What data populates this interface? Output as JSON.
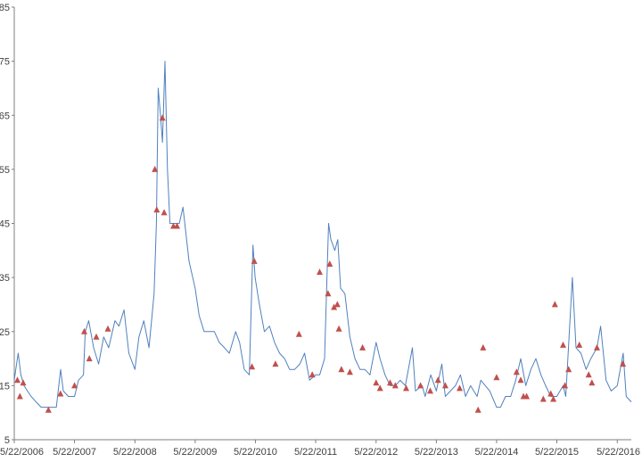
{
  "chart_data": {
    "type": "line",
    "title": "",
    "xlabel": "",
    "ylabel": "",
    "ylim": [
      5,
      85
    ],
    "y_ticks": [
      5,
      15,
      25,
      35,
      45,
      55,
      65,
      75,
      85
    ],
    "y_tick_labels": [
      "5",
      "15",
      "25",
      "35",
      "45",
      "55",
      "65",
      "75",
      "85"
    ],
    "x_ticks": [
      "5/22/2006",
      "5/22/2007",
      "5/22/2008",
      "5/22/2009",
      "5/22/2010",
      "5/22/2011",
      "5/22/2012",
      "5/22/2013",
      "5/22/2014",
      "5/22/2015",
      "5/22/2016"
    ],
    "xlim": [
      "5/22/2006",
      "8/15/2016"
    ],
    "grid": false,
    "legend": "none",
    "colors": {
      "line": "#4f81bd",
      "marker": "#c0504d",
      "axis": "#7f7f7f"
    },
    "series": [
      {
        "type": "line",
        "x": [
          "5/22/2006",
          "6/5/2006",
          "6/15/2006",
          "7/1/2006",
          "7/20/2006",
          "8/10/2006",
          "9/1/2006",
          "10/1/2006",
          "11/1/2006",
          "12/1/2006",
          "1/2/2007",
          "2/1/2007",
          "2/27/2007",
          "3/15/2007",
          "4/15/2007",
          "5/22/2007",
          "6/15/2007",
          "7/15/2007",
          "7/26/2007",
          "8/16/2007",
          "9/15/2007",
          "10/15/2007",
          "11/15/2007",
          "12/15/2007",
          "1/22/2008",
          "2/15/2008",
          "3/17/2008",
          "4/15/2008",
          "5/22/2008",
          "6/15/2008",
          "7/15/2008",
          "8/15/2008",
          "9/15/2008",
          "9/29/2008",
          "10/10/2008",
          "10/24/2008",
          "11/5/2008",
          "11/20/2008",
          "12/5/2008",
          "12/20/2008",
          "1/15/2009",
          "2/15/2009",
          "3/9/2009",
          "4/15/2009",
          "5/22/2009",
          "6/15/2009",
          "7/15/2009",
          "8/15/2009",
          "9/15/2009",
          "10/15/2009",
          "11/15/2009",
          "12/15/2009",
          "1/22/2010",
          "2/15/2010",
          "3/15/2010",
          "4/15/2010",
          "5/7/2010",
          "5/20/2010",
          "6/15/2010",
          "7/15/2010",
          "8/15/2010",
          "9/15/2010",
          "10/15/2010",
          "11/15/2010",
          "12/15/2010",
          "1/15/2011",
          "2/15/2011",
          "3/16/2011",
          "4/15/2011",
          "5/22/2011",
          "6/15/2011",
          "7/15/2011",
          "8/8/2011",
          "8/22/2011",
          "9/15/2011",
          "10/3/2011",
          "10/20/2011",
          "11/15/2011",
          "12/15/2011",
          "1/15/2012",
          "2/15/2012",
          "3/15/2012",
          "4/15/2012",
          "5/22/2012",
          "6/15/2012",
          "7/15/2012",
          "8/15/2012",
          "9/15/2012",
          "10/15/2012",
          "11/15/2012",
          "12/28/2012",
          "1/15/2013",
          "2/25/2013",
          "3/15/2013",
          "4/18/2013",
          "5/22/2013",
          "6/24/2013",
          "7/15/2013",
          "8/15/2013",
          "9/15/2013",
          "10/15/2013",
          "11/15/2013",
          "12/15/2013",
          "1/24/2014",
          "2/15/2014",
          "3/15/2014",
          "4/11/2014",
          "5/22/2014",
          "6/15/2014",
          "7/15/2014",
          "8/15/2014",
          "9/15/2014",
          "10/15/2014",
          "11/15/2014",
          "12/16/2014",
          "1/15/2015",
          "2/15/2015",
          "3/15/2015",
          "4/15/2015",
          "5/22/2015",
          "6/29/2015",
          "7/15/2015",
          "8/24/2015",
          "9/15/2015",
          "10/15/2015",
          "11/15/2015",
          "12/14/2015",
          "1/20/2016",
          "2/11/2016",
          "3/15/2016",
          "4/15/2016",
          "5/22/2016",
          "6/27/2016",
          "7/15/2016",
          "8/15/2016"
        ],
        "y": [
          16,
          19,
          21,
          17,
          15,
          14,
          13,
          12,
          11,
          11,
          11,
          11,
          18,
          14,
          13,
          13,
          16,
          17,
          25,
          27,
          22,
          19,
          24,
          22,
          27,
          26,
          29,
          21,
          18,
          24,
          27,
          22,
          32,
          45,
          70,
          65,
          60,
          75,
          55,
          45,
          45,
          45,
          48,
          38,
          33,
          28,
          25,
          25,
          25,
          23,
          22,
          21,
          25,
          23,
          18,
          17,
          41,
          35,
          30,
          25,
          26,
          23,
          21,
          20,
          18,
          18,
          19,
          21,
          16,
          17,
          17,
          20,
          45,
          42,
          40,
          42,
          33,
          32,
          24,
          20,
          18,
          18,
          17,
          23,
          20,
          17,
          15,
          15,
          16,
          15,
          22,
          14,
          15,
          13,
          17,
          14,
          19,
          13,
          14,
          15,
          17,
          13,
          15,
          13,
          16,
          15,
          14,
          11,
          11,
          13,
          13,
          16,
          20,
          15,
          18,
          20,
          17,
          15,
          13,
          13,
          15,
          13,
          35,
          22,
          21,
          18,
          20,
          22,
          26,
          16,
          14,
          15,
          21,
          13,
          12
        ]
      },
      {
        "type": "scatter",
        "marker": "triangle",
        "x": [
          "6/10/2006",
          "6/25/2006",
          "7/15/2006",
          "12/15/2006",
          "2/26/2007",
          "5/22/2007",
          "7/20/2007",
          "8/20/2007",
          "10/1/2007",
          "12/10/2007",
          "9/20/2008",
          "10/1/2008",
          "11/5/2008",
          "11/15/2008",
          "1/10/2009",
          "2/1/2009",
          "5/1/2010",
          "5/15/2010",
          "9/20/2010",
          "2/10/2011",
          "5/1/2011",
          "6/15/2011",
          "8/5/2011",
          "8/15/2011",
          "9/10/2011",
          "9/30/2011",
          "10/10/2011",
          "10/25/2011",
          "12/15/2011",
          "3/1/2012",
          "5/22/2012",
          "6/15/2012",
          "8/15/2012",
          "9/15/2012",
          "11/20/2012",
          "2/15/2013",
          "4/15/2013",
          "6/1/2013",
          "7/15/2013",
          "10/10/2013",
          "1/30/2014",
          "3/1/2014",
          "5/22/2014",
          "9/20/2014",
          "10/15/2014",
          "11/1/2014",
          "11/20/2014",
          "3/1/2015",
          "4/15/2015",
          "5/1/2015",
          "5/10/2015",
          "6/29/2015",
          "7/10/2015",
          "8/1/2015",
          "10/5/2015",
          "12/1/2015",
          "12/20/2015",
          "1/20/2016",
          "6/25/2016"
        ],
        "y": [
          16,
          13,
          15.5,
          10.5,
          13.5,
          15,
          25,
          20,
          24,
          25.5,
          55,
          47.5,
          64.5,
          47,
          44.5,
          44.5,
          18.5,
          38,
          19,
          24.5,
          17,
          36,
          32,
          37.5,
          29.5,
          30,
          25.5,
          18,
          17.5,
          22,
          15.5,
          14.5,
          15.5,
          15,
          14.5,
          15,
          14,
          16,
          15,
          14.5,
          10.5,
          22,
          16.5,
          17.5,
          16,
          13,
          13,
          12.5,
          13.5,
          12.5,
          30,
          22.5,
          15,
          18,
          22.5,
          17,
          15.5,
          22,
          19
        ]
      }
    ]
  }
}
